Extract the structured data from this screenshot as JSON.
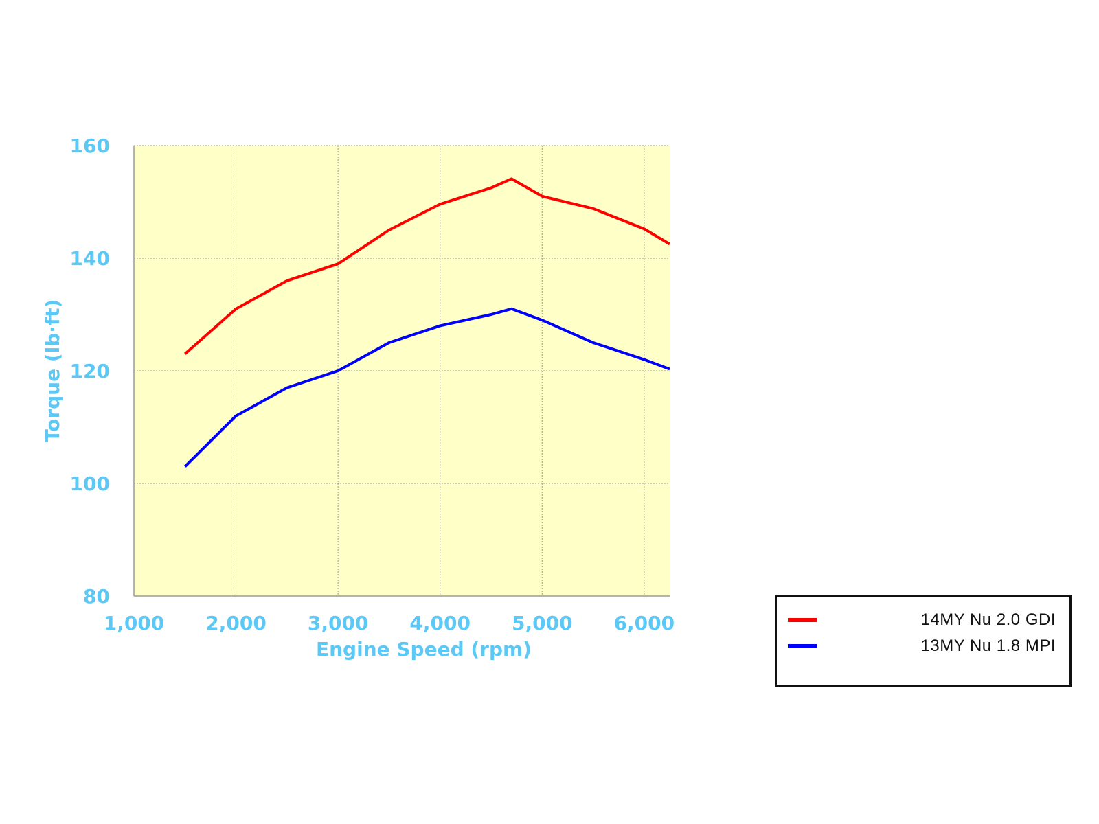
{
  "chart_data": {
    "type": "line",
    "xlabel": "Engine Speed (rpm)",
    "ylabel": "Torque (lb·ft)",
    "xlim": [
      1000,
      6250
    ],
    "ylim": [
      80,
      160
    ],
    "x_ticks": [
      1000,
      2000,
      3000,
      4000,
      5000,
      6000
    ],
    "x_tick_labels": [
      "1,000",
      "2,000",
      "3,000",
      "4,000",
      "5,000",
      "6,000"
    ],
    "y_ticks": [
      80,
      100,
      120,
      140,
      160
    ],
    "y_tick_labels": [
      "80",
      "100",
      "120",
      "140",
      "160"
    ],
    "grid": true,
    "plot_background": "#ffffc8",
    "legend_position": "bottom-right, outside plot",
    "series": [
      {
        "name": "14MY Nu 2.0 GDI",
        "color": "#ff0000",
        "x": [
          1500,
          2000,
          2500,
          3000,
          3500,
          4000,
          4500,
          4700,
          5000,
          5500,
          6000,
          6250
        ],
        "y": [
          123,
          131,
          136,
          139,
          145,
          149.6,
          152.5,
          154.1,
          151,
          148.8,
          145.2,
          142.5
        ]
      },
      {
        "name": "13MY Nu 1.8 MPI",
        "color": "#0000ff",
        "x": [
          1500,
          2000,
          2500,
          3000,
          3500,
          4000,
          4500,
          4700,
          5000,
          5500,
          6000,
          6250
        ],
        "y": [
          103,
          112,
          117,
          120,
          125,
          128,
          130,
          131,
          129,
          125,
          122,
          120.3
        ]
      }
    ]
  }
}
